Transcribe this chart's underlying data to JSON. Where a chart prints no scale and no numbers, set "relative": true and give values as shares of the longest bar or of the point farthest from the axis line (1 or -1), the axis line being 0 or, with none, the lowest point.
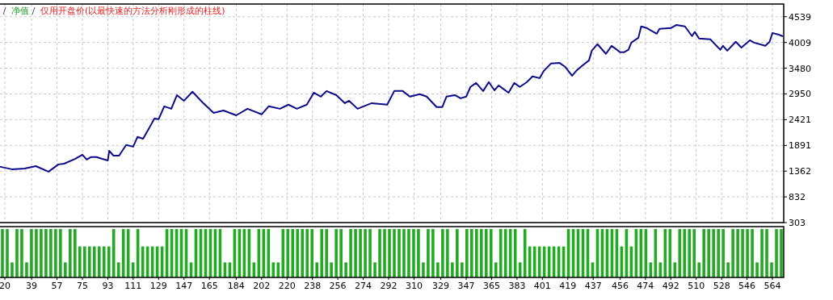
{
  "chart_data": [
    {
      "type": "line",
      "title": "净值",
      "subtitle": "仅用开盘价(以最快速的方法分析刚形成的柱线)",
      "grid": true,
      "xlim": [
        16.6,
        572
      ],
      "xticks": [
        20,
        39,
        57,
        75,
        93,
        111,
        129,
        147,
        165,
        184,
        202,
        220,
        238,
        256,
        274,
        292,
        310,
        329,
        347,
        365,
        383,
        401,
        419,
        437,
        456,
        474,
        492,
        510,
        528,
        546,
        564
      ],
      "ylim": [
        303,
        4800
      ],
      "yticks": [
        303,
        832,
        1362,
        1891,
        2421,
        2950,
        3480,
        4009,
        4539
      ],
      "series": [
        {
          "color": "#0c0c8a",
          "x": [
            17,
            25,
            34,
            42,
            51,
            58,
            62,
            70,
            75,
            78,
            81,
            85,
            89,
            93,
            94,
            97,
            101,
            106,
            111,
            114,
            118,
            122,
            126,
            129,
            133,
            138,
            142,
            147,
            153,
            160,
            168,
            175,
            184,
            192,
            202,
            207,
            215,
            221,
            227,
            234,
            239,
            244,
            248,
            255,
            261,
            264,
            270,
            280,
            291,
            296,
            302,
            307,
            314,
            319,
            326,
            330,
            333,
            339,
            343,
            347,
            350,
            354,
            359,
            363,
            367,
            370,
            373,
            377,
            381,
            385,
            390,
            394,
            399,
            402,
            407,
            413,
            417,
            422,
            425,
            429,
            434,
            436,
            440,
            446,
            450,
            456,
            459,
            462,
            464,
            469,
            471,
            475,
            482,
            484,
            492,
            496,
            502,
            507,
            509,
            512,
            520,
            527,
            529,
            532,
            538,
            542,
            548,
            551,
            559,
            562,
            564,
            568,
            571
          ],
          "values": [
            1450,
            1400,
            1415,
            1465,
            1350,
            1500,
            1515,
            1615,
            1700,
            1600,
            1650,
            1650,
            1615,
            1580,
            1780,
            1680,
            1680,
            1900,
            1865,
            2065,
            2030,
            2230,
            2445,
            2430,
            2695,
            2645,
            2925,
            2810,
            2995,
            2780,
            2560,
            2610,
            2510,
            2645,
            2530,
            2695,
            2645,
            2730,
            2645,
            2730,
            2975,
            2895,
            3010,
            2925,
            2760,
            2810,
            2645,
            2760,
            2730,
            3010,
            3010,
            2895,
            2945,
            2895,
            2680,
            2680,
            2895,
            2925,
            2860,
            2895,
            3095,
            3175,
            3010,
            3195,
            3025,
            3125,
            3060,
            2975,
            3175,
            3095,
            3195,
            3310,
            3275,
            3425,
            3575,
            3590,
            3510,
            3325,
            3425,
            3525,
            3640,
            3840,
            3975,
            3775,
            3940,
            3810,
            3810,
            3860,
            4005,
            4105,
            4340,
            4305,
            4190,
            4290,
            4305,
            4370,
            4340,
            4140,
            4225,
            4090,
            4075,
            3860,
            3940,
            3840,
            4025,
            3905,
            4055,
            4005,
            3940,
            4025,
            4205,
            4175,
            4140
          ]
        }
      ]
    },
    {
      "type": "bar",
      "relative": true,
      "color": "#22aa22",
      "categories": [
        null,
        null,
        null,
        null,
        null,
        null,
        null,
        null,
        null,
        null,
        null,
        null,
        null,
        null,
        null,
        null,
        null,
        null,
        null,
        null,
        null,
        null,
        null,
        null,
        null,
        null,
        null,
        null,
        null,
        null,
        null,
        null,
        null,
        null,
        null,
        null,
        null,
        null,
        null,
        null,
        null,
        null,
        null,
        null,
        null,
        null,
        null,
        null,
        null,
        null,
        null,
        null,
        null,
        null,
        null,
        null,
        null,
        null,
        null,
        null,
        null,
        null,
        null,
        null,
        null,
        null,
        null,
        null,
        null,
        null,
        null,
        null,
        null,
        null,
        null,
        null,
        null,
        null,
        null,
        null,
        null,
        null,
        null,
        null,
        null,
        null,
        null,
        null,
        null,
        null,
        null,
        null,
        null,
        null,
        null,
        null,
        null,
        null,
        null,
        null,
        null,
        null,
        null,
        null,
        null,
        null,
        null,
        null,
        null,
        null,
        null,
        null,
        null,
        null,
        null,
        null,
        null,
        null,
        null,
        null,
        null,
        null,
        null,
        null,
        null,
        null,
        null,
        null,
        null,
        null,
        null,
        null,
        null,
        null,
        null,
        null,
        null,
        null,
        null,
        null,
        null,
        null,
        null,
        null,
        null,
        null,
        null,
        null,
        null,
        null,
        null,
        null,
        null,
        null,
        null,
        null,
        null,
        null,
        null,
        null,
        null,
        null
      ],
      "values": [
        1,
        1,
        0.31,
        1,
        1,
        0.31,
        1,
        1,
        1,
        1,
        1,
        1,
        1,
        0.31,
        1,
        1,
        0.64,
        0.64,
        0.64,
        0.64,
        0.64,
        0.64,
        0.64,
        1,
        0.31,
        1,
        1,
        0.31,
        1,
        0.64,
        0.64,
        0.64,
        0.64,
        0.64,
        1,
        1,
        1,
        1,
        1,
        0.31,
        1,
        1,
        1,
        1,
        1,
        1,
        0.31,
        0.31,
        1,
        1,
        1,
        1,
        0.31,
        1,
        1,
        1,
        0.31,
        0.31,
        1,
        1,
        1,
        1,
        1,
        1,
        1,
        0.31,
        1,
        1,
        0.31,
        1,
        1,
        0.31,
        1,
        1,
        1,
        1,
        1,
        0.31,
        1,
        1,
        1,
        1,
        1,
        1,
        1,
        1,
        1,
        0.31,
        1,
        1,
        0.31,
        1,
        1,
        0.31,
        1,
        0.31,
        1,
        1,
        1,
        1,
        1,
        1,
        0.31,
        1,
        1,
        1,
        1,
        0.31,
        1,
        0.64,
        0.64,
        0.64,
        0.64,
        0.64,
        0.64,
        0.64,
        0.64,
        1,
        1,
        1,
        1,
        1,
        0.31,
        1,
        1,
        1,
        1,
        1,
        0.64,
        1,
        0.64,
        1,
        1,
        1,
        0.31,
        1,
        0.31,
        1,
        1,
        0.31,
        1,
        1,
        1,
        1,
        0.31,
        1,
        1,
        1,
        1,
        1,
        0.31,
        1,
        1,
        1,
        1,
        1,
        0.31,
        1,
        1,
        0.31,
        1,
        1
      ]
    }
  ]
}
